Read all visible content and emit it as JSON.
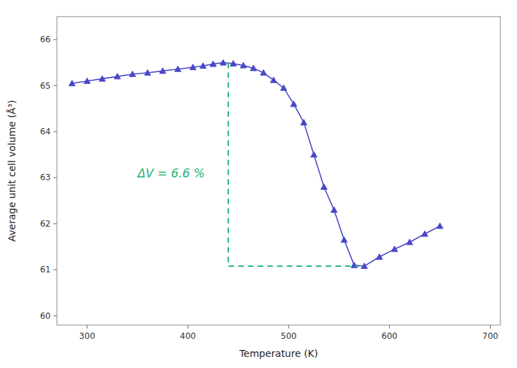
{
  "chart_data": {
    "type": "line",
    "xlabel": "Temperature (K)",
    "ylabel": "Average unit cell volume (Å³)",
    "xlim": [
      270,
      710
    ],
    "ylim": [
      59.8,
      66.5
    ],
    "xticks": [
      300,
      400,
      500,
      600,
      700
    ],
    "yticks": [
      60,
      61,
      62,
      63,
      64,
      65,
      66
    ],
    "grid": false,
    "series": [
      {
        "color": "#4848c8",
        "marker": "triangle",
        "line_style": "solid",
        "x": [
          285,
          300,
          315,
          330,
          345,
          360,
          375,
          390,
          405,
          415,
          425,
          435,
          445,
          455,
          465,
          475,
          485,
          495,
          505,
          515,
          525,
          535,
          545,
          555,
          565,
          575,
          590,
          605,
          620,
          635,
          650
        ],
        "values": [
          65.05,
          65.1,
          65.15,
          65.2,
          65.25,
          65.28,
          65.32,
          65.36,
          65.4,
          65.43,
          65.47,
          65.5,
          65.48,
          65.44,
          65.38,
          65.28,
          65.12,
          64.95,
          64.6,
          64.2,
          63.5,
          62.8,
          62.3,
          61.65,
          61.1,
          61.08,
          61.28,
          61.45,
          61.6,
          61.78,
          61.95
        ]
      },
      {
        "color": "#22b573",
        "line_style": "dashed",
        "x": [
          440,
          440,
          570
        ],
        "values": [
          65.5,
          61.08,
          61.08
        ]
      }
    ],
    "annotations": [
      {
        "text": "ΔV = 6.6 %",
        "x": 350,
        "y": 63.0,
        "color": "#22b573"
      }
    ]
  }
}
